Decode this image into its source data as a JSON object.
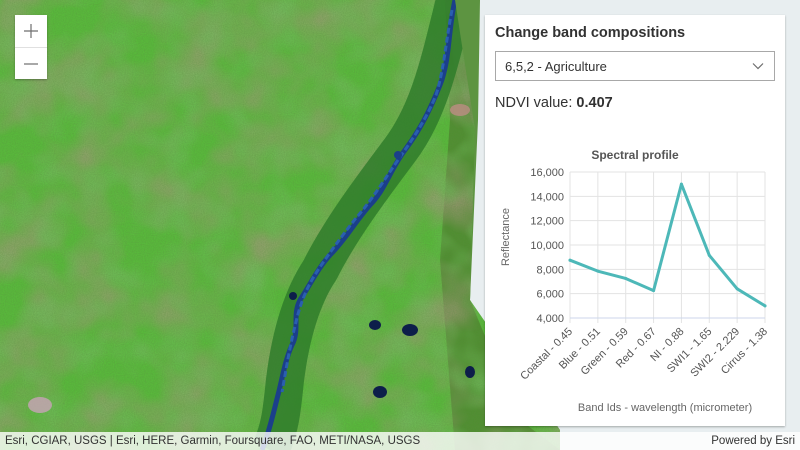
{
  "map": {
    "zoom_in_icon": "plus-icon",
    "zoom_out_icon": "minus-icon",
    "attribution": "Esri, CGIAR, USGS | Esri, HERE, Garmin, Foursquare, FAO, METI/NASA, USGS",
    "powered_by": "Powered by Esri"
  },
  "panel": {
    "title": "Change band compositions",
    "selected_option": "6,5,2 - Agriculture",
    "ndvi_label": "NDVI value:",
    "ndvi_value": "0.407"
  },
  "chart_data": {
    "type": "line",
    "title": "Spectral profile",
    "xlabel": "Band Ids - wavelength (micrometer)",
    "ylabel": "Reflectance",
    "categories": [
      "Coastal - 0.45",
      "Blue - 0.51",
      "Green - 0.59",
      "Red - 0.67",
      "NI - 0.88",
      "SWI1 - 1.65",
      "SWI2 - 2.229",
      "Cirrus - 1.38"
    ],
    "series": [
      {
        "values": [
          8750,
          7850,
          7250,
          6250,
          15000,
          9150,
          6400,
          5000
        ]
      }
    ],
    "ylim": [
      4000,
      16000
    ],
    "yticks": [
      "4,000",
      "6,000",
      "8,000",
      "10,000",
      "12,000",
      "14,000",
      "16,000"
    ],
    "grid": true,
    "line_color": "#4db8b8"
  }
}
